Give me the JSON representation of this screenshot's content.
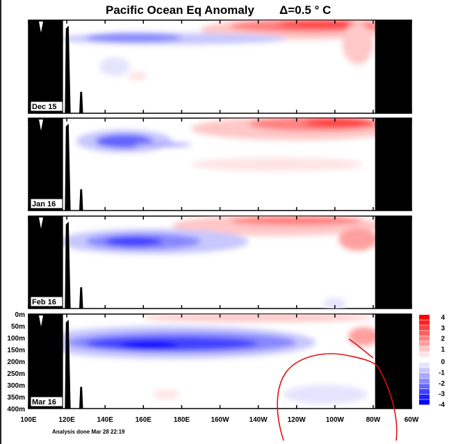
{
  "chart_data": {
    "type": "heatmap",
    "title": "Pacific Ocean Eq Anomaly",
    "contour_interval": "Δ=0.5 ° C",
    "footnote": "Analysis done Mar 28 22:19",
    "x_ticks": [
      {
        "lon": 100,
        "label": "100E"
      },
      {
        "lon": 120,
        "label": "120E"
      },
      {
        "lon": 140,
        "label": "140E"
      },
      {
        "lon": 160,
        "label": "160E"
      },
      {
        "lon": 180,
        "label": "180E"
      },
      {
        "lon": 200,
        "label": "160W"
      },
      {
        "lon": 220,
        "label": "140W"
      },
      {
        "lon": 240,
        "label": "120W"
      },
      {
        "lon": 260,
        "label": "100W"
      },
      {
        "lon": 280,
        "label": "80W"
      },
      {
        "lon": 300,
        "label": "60W"
      }
    ],
    "y_ticks": [
      {
        "depth": 0,
        "label": "0m"
      },
      {
        "depth": 50,
        "label": "50m"
      },
      {
        "depth": 100,
        "label": "100m"
      },
      {
        "depth": 150,
        "label": "150m"
      },
      {
        "depth": 200,
        "label": "200m"
      },
      {
        "depth": 250,
        "label": "250m"
      },
      {
        "depth": 300,
        "label": "300m"
      },
      {
        "depth": 350,
        "label": "350m"
      },
      {
        "depth": 400,
        "label": "400m"
      }
    ],
    "xlim": [
      100,
      300
    ],
    "ylim": [
      0,
      400
    ],
    "colorbar": {
      "ticks": [
        "4",
        "3",
        "2",
        "1",
        "0",
        "-1",
        "-2",
        "-3",
        "-4"
      ],
      "levels": [
        {
          "v": 4,
          "c": "#ff0000"
        },
        {
          "v": 3.5,
          "c": "#ff2020"
        },
        {
          "v": 3,
          "c": "#ff4040"
        },
        {
          "v": 2.5,
          "c": "#ff6060"
        },
        {
          "v": 2,
          "c": "#ff8080"
        },
        {
          "v": 1.5,
          "c": "#ffa0a0"
        },
        {
          "v": 1,
          "c": "#ffc8c8"
        },
        {
          "v": 0.5,
          "c": "#ffe4e4"
        },
        {
          "v": 0,
          "c": "#ffffff"
        },
        {
          "v": -0.5,
          "c": "#e4e4ff"
        },
        {
          "v": -1,
          "c": "#c8c8ff"
        },
        {
          "v": -1.5,
          "c": "#a8a8ff"
        },
        {
          "v": -2,
          "c": "#8888ff"
        },
        {
          "v": -2.5,
          "c": "#6464ff"
        },
        {
          "v": -3,
          "c": "#4040ff"
        },
        {
          "v": -3.5,
          "c": "#2020ff"
        },
        {
          "v": -4,
          "c": "#0000ff"
        }
      ]
    },
    "panels": [
      {
        "label": "Dec 15",
        "features": [
          {
            "lon": 240,
            "depth": 40,
            "dlon": 50,
            "ddepth": 45,
            "value": 1
          },
          {
            "lon": 245,
            "depth": 25,
            "dlon": 40,
            "ddepth": 28,
            "value": 2
          },
          {
            "lon": 255,
            "depth": 18,
            "dlon": 25,
            "ddepth": 18,
            "value": 3
          },
          {
            "lon": 272,
            "depth": 100,
            "dlon": 8,
            "ddepth": 90,
            "value": 1
          },
          {
            "lon": 175,
            "depth": 80,
            "dlon": 60,
            "ddepth": 25,
            "value": -1
          },
          {
            "lon": 155,
            "depth": 75,
            "dlon": 25,
            "ddepth": 20,
            "value": -2
          },
          {
            "lon": 145,
            "depth": 200,
            "dlon": 8,
            "ddepth": 40,
            "value": -0.5
          },
          {
            "lon": 157,
            "depth": 240,
            "dlon": 5,
            "ddepth": 20,
            "value": 0.5
          }
        ]
      },
      {
        "label": "Jan 16",
        "features": [
          {
            "lon": 240,
            "depth": 45,
            "dlon": 55,
            "ddepth": 50,
            "value": 1
          },
          {
            "lon": 250,
            "depth": 25,
            "dlon": 35,
            "ddepth": 30,
            "value": 2
          },
          {
            "lon": 262,
            "depth": 20,
            "dlon": 18,
            "ddepth": 20,
            "value": 3
          },
          {
            "lon": 230,
            "depth": 200,
            "dlon": 45,
            "ddepth": 30,
            "value": 0.5
          },
          {
            "lon": 150,
            "depth": 100,
            "dlon": 25,
            "ddepth": 50,
            "value": -1
          },
          {
            "lon": 150,
            "depth": 100,
            "dlon": 15,
            "ddepth": 30,
            "value": -2.5
          },
          {
            "lon": 170,
            "depth": 115,
            "dlon": 15,
            "ddepth": 10,
            "value": -1.5
          }
        ]
      },
      {
        "label": "Feb 16",
        "features": [
          {
            "lon": 230,
            "depth": 40,
            "dlon": 55,
            "ddepth": 45,
            "value": 1
          },
          {
            "lon": 240,
            "depth": 20,
            "dlon": 35,
            "ddepth": 20,
            "value": 2
          },
          {
            "lon": 272,
            "depth": 100,
            "dlon": 10,
            "ddepth": 50,
            "value": 1.5
          },
          {
            "lon": 165,
            "depth": 110,
            "dlon": 50,
            "ddepth": 55,
            "value": -1
          },
          {
            "lon": 160,
            "depth": 110,
            "dlon": 30,
            "ddepth": 35,
            "value": -2
          },
          {
            "lon": 155,
            "depth": 110,
            "dlon": 15,
            "ddepth": 20,
            "value": -3
          },
          {
            "lon": 260,
            "depth": 380,
            "dlon": 6,
            "ddepth": 25,
            "value": -0.5
          }
        ]
      },
      {
        "label": "Mar 16",
        "features": [
          {
            "lon": 220,
            "depth": 15,
            "dlon": 60,
            "ddepth": 18,
            "value": 1
          },
          {
            "lon": 275,
            "depth": 95,
            "dlon": 8,
            "ddepth": 40,
            "value": 1.5
          },
          {
            "lon": 175,
            "depth": 120,
            "dlon": 75,
            "ddepth": 70,
            "value": -1
          },
          {
            "lon": 180,
            "depth": 120,
            "dlon": 60,
            "ddepth": 45,
            "value": -2
          },
          {
            "lon": 175,
            "depth": 125,
            "dlon": 45,
            "ddepth": 28,
            "value": -3
          },
          {
            "lon": 163,
            "depth": 135,
            "dlon": 15,
            "ddepth": 18,
            "value": -4
          },
          {
            "lon": 255,
            "depth": 340,
            "dlon": 22,
            "ddepth": 40,
            "value": -0.5
          },
          {
            "lon": 172,
            "depth": 340,
            "dlon": 7,
            "ddepth": 20,
            "value": 0.5
          }
        ]
      }
    ]
  }
}
